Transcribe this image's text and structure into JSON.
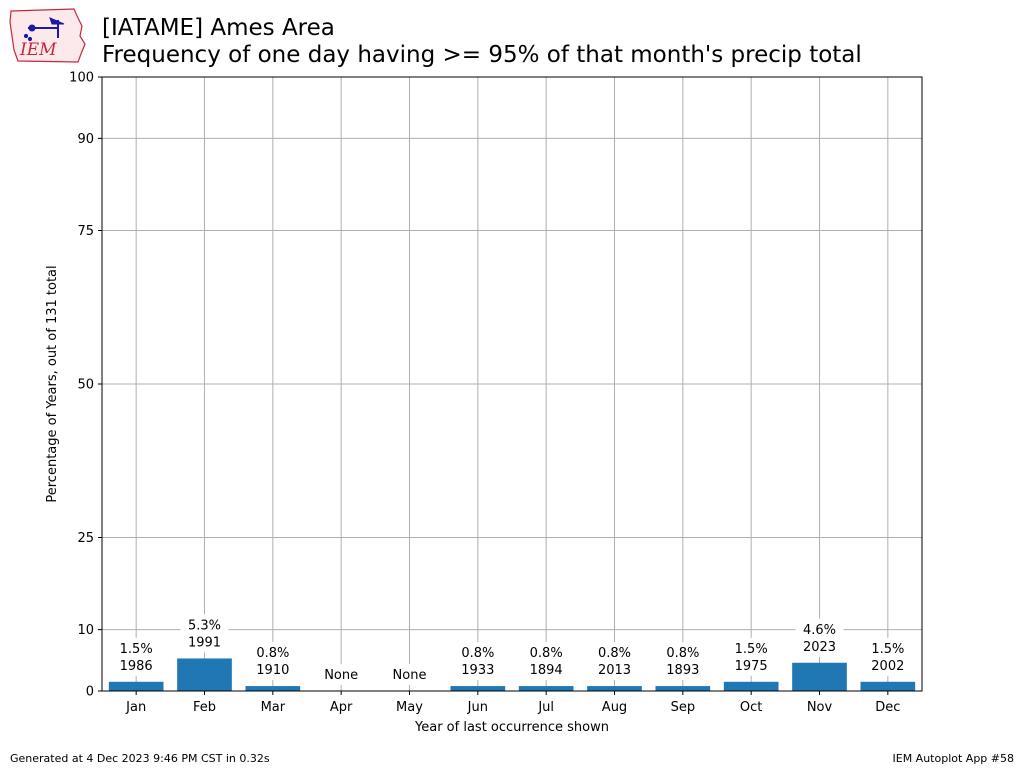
{
  "header": {
    "title_line1": "[IATAME] Ames Area",
    "title_line2": "Frequency of one day having >= 95% of that month's precip total",
    "logo_text": "IEM"
  },
  "footer": {
    "generated": "Generated at 4 Dec 2023 9:46 PM CST in 0.32s",
    "app": "IEM Autoplot App #58"
  },
  "chart_data": {
    "type": "bar",
    "categories": [
      "Jan",
      "Feb",
      "Mar",
      "Apr",
      "May",
      "Jun",
      "Jul",
      "Aug",
      "Sep",
      "Oct",
      "Nov",
      "Dec"
    ],
    "values": [
      1.5,
      5.3,
      0.8,
      0,
      0,
      0.8,
      0.8,
      0.8,
      0.8,
      1.5,
      4.6,
      1.5
    ],
    "labels": [
      "1.5%\n1986",
      "5.3%\n1991",
      "0.8%\n1910",
      "None",
      "None",
      "0.8%\n1933",
      "0.8%\n1894",
      "0.8%\n2013",
      "0.8%\n1893",
      "1.5%\n1975",
      "4.6%\n2023",
      "1.5%\n2002"
    ],
    "ylabel": "Percentage of Years, out of 131 total",
    "xlabel": "Year of last occurrence shown",
    "ylim": [
      0,
      100
    ],
    "yticks": [
      0,
      10,
      25,
      50,
      75,
      90,
      100
    ],
    "grid": true,
    "bar_color": "#1f77b4"
  }
}
